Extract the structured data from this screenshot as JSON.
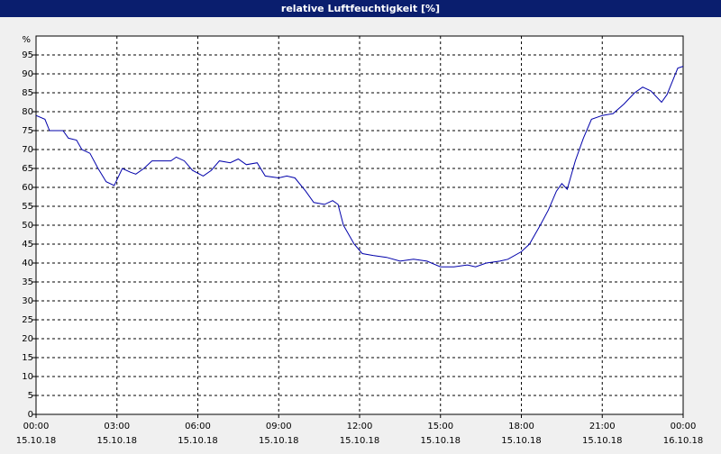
{
  "chart_data": {
    "type": "line",
    "title": "relative Luftfeuchtigkeit [%]",
    "y_unit": "%",
    "xlim": [
      0,
      24
    ],
    "ylim": [
      0,
      100
    ],
    "yticks": [
      0,
      5,
      10,
      15,
      20,
      25,
      30,
      35,
      40,
      45,
      50,
      55,
      60,
      65,
      70,
      75,
      80,
      85,
      90,
      95
    ],
    "xticks": [
      {
        "value": 0,
        "label": "00:00",
        "date": "15.10.18"
      },
      {
        "value": 3,
        "label": "03:00",
        "date": "15.10.18"
      },
      {
        "value": 6,
        "label": "06:00",
        "date": "15.10.18"
      },
      {
        "value": 9,
        "label": "09:00",
        "date": "15.10.18"
      },
      {
        "value": 12,
        "label": "12:00",
        "date": "15.10.18"
      },
      {
        "value": 15,
        "label": "15:00",
        "date": "15.10.18"
      },
      {
        "value": 18,
        "label": "18:00",
        "date": "15.10.18"
      },
      {
        "value": 21,
        "label": "21:00",
        "date": "15.10.18"
      },
      {
        "value": 24,
        "label": "00:00",
        "date": "16.10.18"
      }
    ],
    "grid": true,
    "x": [
      0,
      0.33,
      0.5,
      1,
      1.2,
      1.5,
      1.7,
      2,
      2.3,
      2.6,
      2.9,
      3.2,
      3.5,
      3.7,
      4,
      4.3,
      5,
      5.2,
      5.5,
      5.8,
      6.2,
      6.5,
      6.8,
      7.2,
      7.5,
      7.8,
      8.2,
      8.5,
      9,
      9.3,
      9.6,
      10,
      10.3,
      10.7,
      11,
      11.2,
      11.4,
      11.8,
      12.1,
      12.5,
      13,
      13.5,
      14,
      14.5,
      15,
      15.5,
      16,
      16.3,
      16.7,
      17.2,
      17.5,
      18,
      18.3,
      18.7,
      19,
      19.3,
      19.5,
      19.7,
      20,
      20.3,
      20.6,
      21,
      21.4,
      21.8,
      22.2,
      22.5,
      22.8,
      23.2,
      23.4,
      23.6,
      23.8,
      24
    ],
    "series": [
      {
        "name": "relative Luftfeuchtigkeit",
        "color": "#0000aa",
        "values": [
          79,
          78,
          75,
          75,
          73,
          72.5,
          70,
          69,
          65,
          61.5,
          60.5,
          65,
          64,
          63.5,
          65,
          67,
          67,
          68,
          67,
          64.5,
          63,
          64.5,
          67,
          66.5,
          67.5,
          66,
          66.5,
          63,
          62.5,
          63,
          62.5,
          59,
          56,
          55.5,
          56.5,
          55.5,
          50,
          45,
          42.5,
          42,
          41.5,
          40.5,
          41,
          40.5,
          39,
          39,
          39.5,
          39,
          40,
          40.5,
          41,
          43,
          45,
          50,
          54,
          59,
          61,
          59.5,
          67,
          73,
          78,
          79,
          79.5,
          82,
          85,
          86.5,
          85.5,
          82.5,
          84.5,
          88,
          91.5,
          92
        ]
      }
    ]
  }
}
